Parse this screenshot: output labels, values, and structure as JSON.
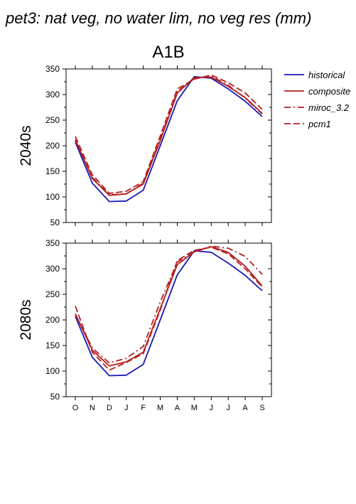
{
  "figure": {
    "title": "pet3: nat veg, no water lim, no veg res (mm)",
    "scenario": "A1B"
  },
  "colors": {
    "historical": "#1a1ab4",
    "projection": "#b41e1e",
    "axis": "#000000"
  },
  "legend": {
    "placement": "right",
    "items": [
      {
        "label": "historical",
        "style": "solid",
        "color": "#1a1ab4"
      },
      {
        "label": "composite",
        "style": "solid",
        "color": "#b41e1e"
      },
      {
        "label": "miroc_3.2",
        "style": "dashdot",
        "color": "#b41e1e"
      },
      {
        "label": "pcm1",
        "style": "dashed",
        "color": "#b41e1e"
      }
    ]
  },
  "chart_data": [
    {
      "type": "line",
      "title": "A1B",
      "ylabel": "2040s",
      "xlabel": "",
      "categories": [
        "O",
        "N",
        "D",
        "J",
        "F",
        "M",
        "A",
        "M",
        "J",
        "J",
        "A",
        "S"
      ],
      "ylim": [
        50,
        350
      ],
      "yticks": [
        50,
        100,
        150,
        200,
        250,
        300,
        350
      ],
      "grid": false,
      "show_x_tick_labels": false,
      "series": [
        {
          "name": "historical",
          "style": "solid",
          "color": "#1a1ab4",
          "values": [
            207,
            127,
            91,
            92,
            113,
            200,
            288,
            335,
            332,
            311,
            287,
            257
          ]
        },
        {
          "name": "composite",
          "style": "solid",
          "color": "#b41e1e",
          "values": [
            212,
            136,
            103,
            106,
            125,
            210,
            303,
            333,
            334,
            316,
            294,
            263
          ]
        },
        {
          "name": "miroc_3.2",
          "style": "dashdot",
          "color": "#b41e1e",
          "values": [
            210,
            138,
            104,
            106,
            127,
            214,
            306,
            331,
            336,
            318,
            293,
            262
          ]
        },
        {
          "name": "pcm1",
          "style": "dashed",
          "color": "#b41e1e",
          "values": [
            218,
            143,
            107,
            111,
            130,
            219,
            311,
            330,
            338,
            323,
            303,
            271
          ]
        }
      ]
    },
    {
      "type": "line",
      "title": "",
      "ylabel": "2080s",
      "xlabel": "",
      "categories": [
        "O",
        "N",
        "D",
        "J",
        "F",
        "M",
        "A",
        "M",
        "J",
        "J",
        "A",
        "S"
      ],
      "ylim": [
        50,
        350
      ],
      "yticks": [
        50,
        100,
        150,
        200,
        250,
        300,
        350
      ],
      "grid": false,
      "show_x_tick_labels": true,
      "series": [
        {
          "name": "historical",
          "style": "solid",
          "color": "#1a1ab4",
          "values": [
            207,
            127,
            91,
            92,
            113,
            200,
            288,
            335,
            332,
            311,
            287,
            257
          ]
        },
        {
          "name": "composite",
          "style": "solid",
          "color": "#b41e1e",
          "values": [
            212,
            141,
            110,
            118,
            137,
            222,
            308,
            333,
            343,
            332,
            305,
            266
          ]
        },
        {
          "name": "miroc_3.2",
          "style": "dashdot",
          "color": "#b41e1e",
          "values": [
            211,
            145,
            116,
            125,
            148,
            235,
            313,
            333,
            344,
            340,
            324,
            289
          ]
        },
        {
          "name": "pcm1",
          "style": "dashed",
          "color": "#b41e1e",
          "values": [
            227,
            137,
            102,
            117,
            134,
            219,
            316,
            336,
            342,
            329,
            300,
            264
          ]
        }
      ]
    }
  ]
}
